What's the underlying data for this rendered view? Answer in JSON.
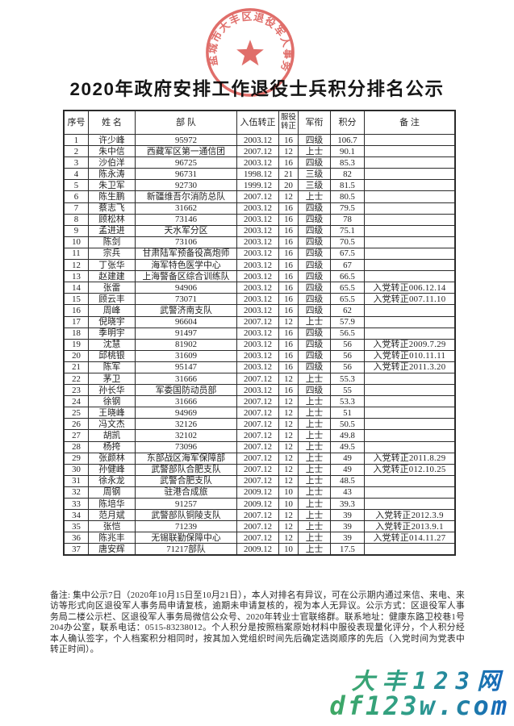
{
  "page": {
    "title": "2020年政府安排工作退役士兵积分排名公示",
    "seal": {
      "text": "盐城市大丰区退役军人事务局",
      "icon": "red-star",
      "color": "#dc5a55"
    }
  },
  "table": {
    "headers": [
      "序号",
      "姓  名",
      "部  队",
      "入伍转正",
      "服役转正",
      "军衔",
      "积分",
      "备  注"
    ],
    "col_keys": [
      "no",
      "name",
      "unit",
      "enlist-date",
      "service-years",
      "rank",
      "score",
      "remark"
    ],
    "rows": [
      [
        "1",
        "许少峰",
        "95972",
        "2003.12",
        "16",
        "四级",
        "106.7",
        ""
      ],
      [
        "2",
        "朱中信",
        "西藏军区第一通信团",
        "2007.12",
        "12",
        "上士",
        "90.1",
        ""
      ],
      [
        "3",
        "沙伯洋",
        "96725",
        "2003.12",
        "16",
        "四级",
        "85.3",
        ""
      ],
      [
        "4",
        "陈永涛",
        "96731",
        "1998.12",
        "21",
        "三级",
        "82",
        ""
      ],
      [
        "5",
        "朱卫军",
        "92730",
        "1999.12",
        "20",
        "三级",
        "81.5",
        ""
      ],
      [
        "6",
        "陈生鹏",
        "新疆维吾尔消防总队",
        "2007.12",
        "12",
        "上士",
        "80.5",
        ""
      ],
      [
        "7",
        "蔡志飞",
        "31662",
        "2003.12",
        "16",
        "四级",
        "79.5",
        ""
      ],
      [
        "8",
        "顾松林",
        "73146",
        "2003.12",
        "16",
        "四级",
        "78",
        ""
      ],
      [
        "9",
        "孟进进",
        "天水军分区",
        "2003.12",
        "16",
        "四级",
        "75.1",
        ""
      ],
      [
        "10",
        "陈剑",
        "73106",
        "2003.12",
        "16",
        "四级",
        "70.5",
        ""
      ],
      [
        "11",
        "宗兵",
        "甘肃陆军预备役高炮师",
        "2003.12",
        "16",
        "四级",
        "67.5",
        ""
      ],
      [
        "12",
        "丁张华",
        "海军特色医学中心",
        "2003.12",
        "16",
        "四级",
        "67",
        ""
      ],
      [
        "13",
        "赵建建",
        "上海警备区综合训练队",
        "2003.12",
        "16",
        "四级",
        "66.5",
        ""
      ],
      [
        "14",
        "张雷",
        "94906",
        "2003.12",
        "16",
        "四级",
        "65.5",
        "入党转正006.12.14"
      ],
      [
        "15",
        "顾云丰",
        "73071",
        "2003.12",
        "16",
        "四级",
        "65.5",
        "入党转正007.11.10"
      ],
      [
        "16",
        "周峰",
        "武警济南支队",
        "2003.12",
        "16",
        "四级",
        "62",
        ""
      ],
      [
        "17",
        "倪晓宇",
        "96604",
        "2007.12",
        "12",
        "上士",
        "57.9",
        ""
      ],
      [
        "18",
        "季明宇",
        "91497",
        "2003.12",
        "16",
        "四级",
        "56.5",
        ""
      ],
      [
        "19",
        "沈慧",
        "81902",
        "2003.12",
        "16",
        "四级",
        "56",
        "入党转正2009.7.29"
      ],
      [
        "20",
        "邱桃银",
        "31609",
        "2003.12",
        "16",
        "四级",
        "56",
        "入党转正010.11.11"
      ],
      [
        "21",
        "陈军",
        "95147",
        "2003.12",
        "16",
        "四级",
        "56",
        "入党转正2011.3.20"
      ],
      [
        "22",
        "茅卫",
        "31666",
        "2007.12",
        "12",
        "上士",
        "55.3",
        ""
      ],
      [
        "23",
        "孙长华",
        "军委国防动员部",
        "2003.12",
        "16",
        "四级",
        "55",
        ""
      ],
      [
        "24",
        "徐钢",
        "31666",
        "2007.12",
        "12",
        "上士",
        "53.3",
        ""
      ],
      [
        "25",
        "王晓峰",
        "94969",
        "2007.12",
        "12",
        "上士",
        "51",
        ""
      ],
      [
        "26",
        "冯文杰",
        "32126",
        "2007.12",
        "12",
        "上士",
        "50.5",
        ""
      ],
      [
        "27",
        "胡凯",
        "32102",
        "2007.12",
        "12",
        "上士",
        "49.8",
        ""
      ],
      [
        "28",
        "杨挎",
        "73096",
        "2007.12",
        "12",
        "上士",
        "49.5",
        ""
      ],
      [
        "29",
        "张颜林",
        "东部战区海军保障部",
        "2007.12",
        "12",
        "上士",
        "49",
        "入党转正2011.8.29"
      ],
      [
        "30",
        "孙健峰",
        "武警部队合肥支队",
        "2007.12",
        "12",
        "上士",
        "49",
        "入党转正012.10.25"
      ],
      [
        "31",
        "徐永龙",
        "武警合肥支队",
        "2007.12",
        "12",
        "上士",
        "48.5",
        ""
      ],
      [
        "32",
        "周钢",
        "驻港合成旅",
        "2009.12",
        "10",
        "上士",
        "43",
        ""
      ],
      [
        "33",
        "陈培华",
        "91257",
        "2009.12",
        "10",
        "上士",
        "39.3",
        ""
      ],
      [
        "34",
        "范月斌",
        "武警部队铜陵支队",
        "2007.12",
        "12",
        "上士",
        "39",
        "入党转正2012.3.9"
      ],
      [
        "35",
        "张恺",
        "71239",
        "2007.12",
        "12",
        "上士",
        "39",
        "入党转正2013.9.1"
      ],
      [
        "36",
        "陈兆丰",
        "无锡联勤保障中心",
        "2007.12",
        "12",
        "上士",
        "39",
        "入党转正014.11.27"
      ],
      [
        "37",
        "唐安辉",
        "71217部队",
        "2009.12",
        "10",
        "上士",
        "17.5",
        ""
      ]
    ]
  },
  "notes": "备注: 集中公示7日（2020年10月15日至10月21日），本人对排名有异议，可在公示期内通过来信、来电、来访等形式向区退役军人事务局申请复核，逾期未申请复核的，视为本人无异议。公示方式：区退役军人事务局二楼公示栏、区退役军人事务局微信公众号、2020年转业士官联络群。联系地址：健康东路卫校巷1号204办公室，联系电话：0515-83238012。个人积分是按照档案原始材料中服役表现量化评分，个人积分经本人确认签字，个人档案积分相同时，按其加入党组织时间先后确定选岗顺序的先后（入党时间为党表中转正时间）。",
  "watermark": {
    "line1": "大丰123网",
    "line2": "df123w.com",
    "color_start": "#3fa863",
    "color_end": "#1466bd"
  }
}
